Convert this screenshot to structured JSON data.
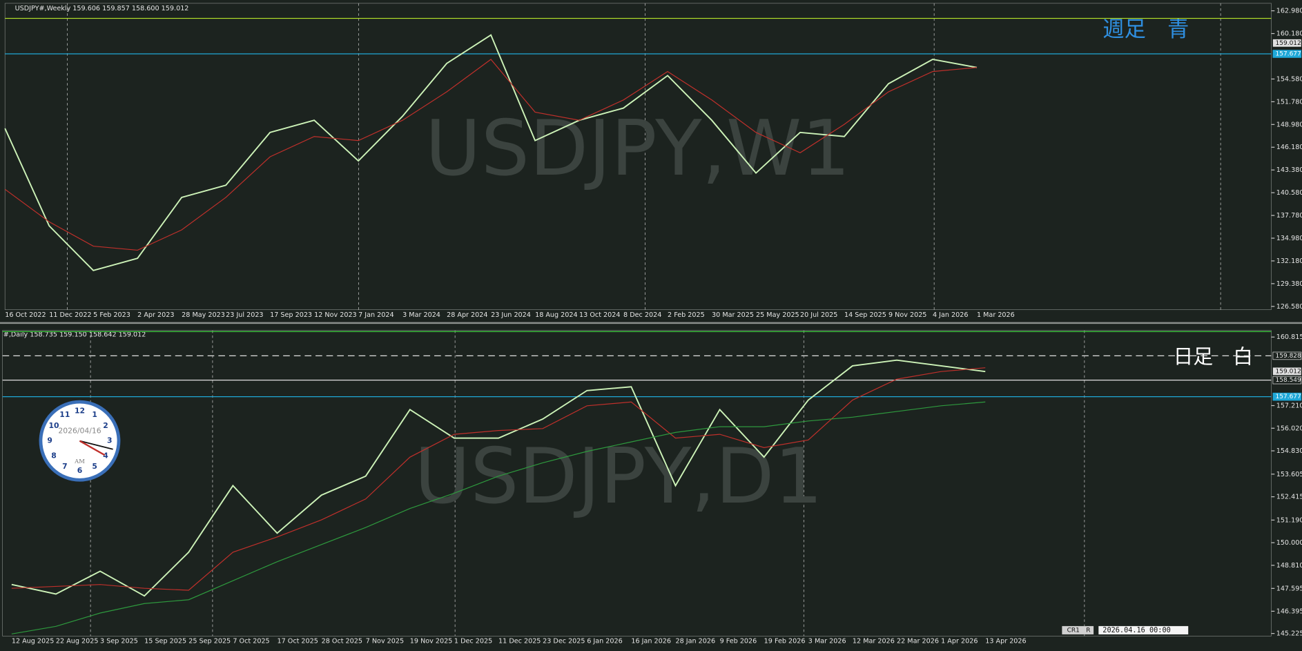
{
  "chart_data": [
    {
      "type": "line",
      "header": "USDJPY#,Weekly  159.606 159.857 158.600 159.012",
      "watermark": "USDJPY,W1",
      "annotation": "週足　青",
      "annotation_color": "#2f8fe0",
      "categories": [
        "16 Oct 2022",
        "11 Dec 2022",
        "5 Feb 2023",
        "2 Apr 2023",
        "28 May 2023",
        "23 Jul 2023",
        "17 Sep 2023",
        "12 Nov 2023",
        "7 Jan 2024",
        "3 Mar 2024",
        "28 Apr 2024",
        "23 Jun 2024",
        "18 Aug 2024",
        "13 Oct 2024",
        "8 Dec 2024",
        "2 Feb 2025",
        "30 Mar 2025",
        "25 May 2025",
        "20 Jul 2025",
        "14 Sep 2025",
        "9 Nov 2025",
        "4 Jan 2026",
        "1 Mar 2026"
      ],
      "series": [
        {
          "color": "#cdf3b8",
          "values": [
            148.5,
            136.5,
            131,
            132.5,
            140,
            141.5,
            148,
            149.5,
            144.5,
            150,
            156.5,
            160,
            147,
            149.5,
            151,
            155,
            149.5,
            143,
            148,
            147.5,
            154,
            157,
            156
          ]
        },
        {
          "color": "#c0302b",
          "values": [
            141,
            137,
            134,
            133.5,
            136,
            140,
            145,
            147.5,
            147,
            149.5,
            153,
            157,
            150.5,
            149.5,
            152,
            155.5,
            152,
            148,
            145.5,
            149,
            153,
            155.5,
            156
          ]
        }
      ],
      "ylim": [
        126.17,
        163.9
      ],
      "yticks": [
        {
          "value": 162.98,
          "label": "162.980"
        },
        {
          "value": 160.18,
          "label": "160.180"
        },
        {
          "value": 154.58,
          "label": "154.580"
        },
        {
          "value": 151.78,
          "label": "151.780"
        },
        {
          "value": 148.98,
          "label": "148.980"
        },
        {
          "value": 146.18,
          "label": "146.180"
        },
        {
          "value": 143.38,
          "label": "143.380"
        },
        {
          "value": 140.58,
          "label": "140.580"
        },
        {
          "value": 137.78,
          "label": "137.780"
        },
        {
          "value": 134.98,
          "label": "134.980"
        },
        {
          "value": 132.18,
          "label": "132.180"
        },
        {
          "value": 129.38,
          "label": "129.380"
        },
        {
          "value": 126.58,
          "label": "126.580"
        }
      ],
      "levels": [
        {
          "value": 162.05,
          "color": "#b6e62a",
          "dash": false,
          "tag": false
        },
        {
          "value": 157.677,
          "color": "#1fa8d8",
          "dash": false,
          "tag": true
        }
      ],
      "price_tags": [
        159.012
      ]
    },
    {
      "type": "line",
      "header": "#,Daily  158.735 159.150 158.642 159.012",
      "watermark": "USDJPY,D1",
      "annotation": "日足　白",
      "annotation_color": "#ffffff",
      "categories": [
        "12 Aug 2025",
        "22 Aug 2025",
        "3 Sep 2025",
        "15 Sep 2025",
        "25 Sep 2025",
        "7 Oct 2025",
        "17 Oct 2025",
        "28 Oct 2025",
        "7 Nov 2025",
        "19 Nov 2025",
        "1 Dec 2025",
        "11 Dec 2025",
        "23 Dec 2025",
        "6 Jan 2026",
        "16 Jan 2026",
        "28 Jan 2026",
        "9 Feb 2026",
        "19 Feb 2026",
        "3 Mar 2026",
        "12 Mar 2026",
        "22 Mar 2026",
        "1 Apr 2026",
        "13 Apr 2026"
      ],
      "series": [
        {
          "color": "#cdf3b8",
          "values": [
            147.8,
            147.3,
            148.5,
            147.2,
            149.5,
            153,
            150.5,
            152.5,
            153.5,
            157,
            155.5,
            155.5,
            156.5,
            158,
            158.2,
            153,
            157,
            154.5,
            157.5,
            159.3,
            159.6,
            159.3,
            159
          ]
        },
        {
          "color": "#c0302b",
          "values": [
            147.6,
            147.7,
            147.8,
            147.6,
            147.5,
            149.5,
            150.3,
            151.2,
            152.3,
            154.5,
            155.7,
            155.9,
            156,
            157.2,
            157.4,
            155.5,
            155.7,
            155,
            155.4,
            157.5,
            158.6,
            159,
            159.2
          ]
        },
        {
          "color": "#2e9a3e",
          "values": [
            145.2,
            145.6,
            146.3,
            146.8,
            147,
            148,
            149,
            149.9,
            150.8,
            151.8,
            152.6,
            153.5,
            154.2,
            154.8,
            155.3,
            155.8,
            156.1,
            156.1,
            156.4,
            156.6,
            156.9,
            157.2,
            157.4
          ]
        }
      ],
      "ylim": [
        145.09,
        161.16
      ],
      "yticks": [
        160.815,
        {
          "value": 157.21,
          "label": "157.210"
        },
        {
          "value": 156.02,
          "label": "156.020"
        },
        {
          "value": 154.83,
          "label": "154.830"
        },
        153.605,
        152.415,
        {
          "value": 151.19,
          "label": "151.190"
        },
        {
          "value": 150,
          "label": "150.000"
        },
        {
          "value": 148.81,
          "label": "148.810"
        },
        147.595,
        146.395,
        145.225
      ],
      "levels": [
        {
          "value": 161.1,
          "color": "#3cc83c",
          "dash": false,
          "tag": false
        },
        {
          "value": 159.828,
          "color": "#e0e0e0",
          "dash": true,
          "tag": true
        },
        {
          "value": 158.549,
          "color": "#e0e0e0",
          "dash": false,
          "tag": true
        },
        {
          "value": 157.677,
          "color": "#1fa8d8",
          "dash": false,
          "tag": true
        }
      ],
      "price_tags": [
        159.012
      ]
    }
  ],
  "clock": {
    "date": "2026/04/16",
    "period": "AM",
    "numerals": [
      "12",
      "1",
      "2",
      "3",
      "4",
      "5",
      "6",
      "7",
      "8",
      "9",
      "10",
      "11"
    ]
  },
  "status": {
    "mode": "CR1",
    "flag": "R",
    "time": "2026.04.16 00:00"
  }
}
